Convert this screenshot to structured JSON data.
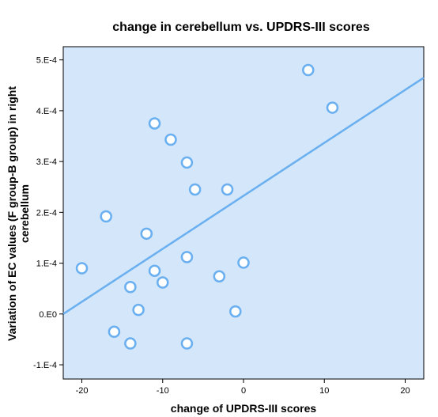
{
  "chart_data": {
    "type": "scatter",
    "title": "change in cerebellum vs. UPDRS-III scores",
    "xlabel": "change of UPDRS-III scores",
    "ylabel_lines": [
      "Variation of EC values (F group-B group) in right",
      "cerebellum"
    ],
    "xlim": [
      -22.3,
      22.3
    ],
    "ylim": [
      -0.000128,
      0.000526
    ],
    "x_ticks": [
      -20,
      -10,
      0,
      10,
      20
    ],
    "x_tick_labels": [
      "-20",
      "-10",
      "0",
      "10",
      "20"
    ],
    "y_ticks": [
      -0.0001,
      0,
      0.0001,
      0.0002,
      0.0003,
      0.0004,
      0.0005
    ],
    "y_tick_labels": [
      "-1.E-4",
      "0.E0",
      "1.E-4",
      "2.E-4",
      "3.E-4",
      "4.E-4",
      "5.E-4"
    ],
    "grid": false,
    "points": [
      {
        "x": -20,
        "y": 9e-05
      },
      {
        "x": -17,
        "y": 0.000192
      },
      {
        "x": -16,
        "y": -3.5e-05
      },
      {
        "x": -14,
        "y": 5.3e-05
      },
      {
        "x": -14,
        "y": -5.8e-05
      },
      {
        "x": -13,
        "y": 8e-06
      },
      {
        "x": -12,
        "y": 0.000158
      },
      {
        "x": -11,
        "y": 0.000375
      },
      {
        "x": -11,
        "y": 8.5e-05
      },
      {
        "x": -10,
        "y": 6.2e-05
      },
      {
        "x": -9,
        "y": 0.000343
      },
      {
        "x": -7,
        "y": 0.000298
      },
      {
        "x": -7,
        "y": 0.000112
      },
      {
        "x": -7,
        "y": -5.8e-05
      },
      {
        "x": -6,
        "y": 0.000245
      },
      {
        "x": -3,
        "y": 7.4e-05
      },
      {
        "x": -2,
        "y": 0.000245
      },
      {
        "x": -1,
        "y": 5e-06
      },
      {
        "x": 0,
        "y": 0.000101
      },
      {
        "x": 8,
        "y": 0.00048
      },
      {
        "x": 11,
        "y": 0.000406
      }
    ],
    "fit_line": {
      "x": [
        -22.3,
        22.3
      ],
      "y": [
        0.0,
        0.000465
      ]
    },
    "colors": {
      "plot_background": "#d3e6fa",
      "point_edge": "#6aaff0",
      "point_fill": "#ffffff",
      "fit_line": "#6aaff0"
    }
  }
}
